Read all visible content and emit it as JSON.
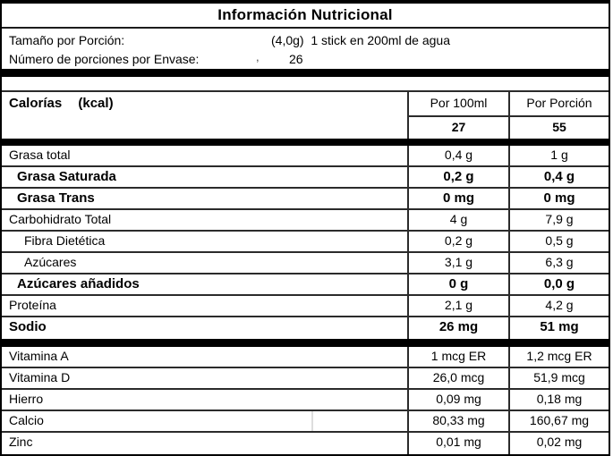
{
  "colors": {
    "text": "#000000",
    "border_heavy": "#000000",
    "border_light": "#2b2b2b",
    "artifact_line": "#dddddd",
    "background": "#ffffff"
  },
  "title": "Información Nutricional",
  "serving": {
    "size_label": "Tamaño por Porción:",
    "size_value": "(4,0g)  1 stick en 200ml de agua",
    "count_label": "Número de porciones por Envase:",
    "stray_mark": ",",
    "count_value": "26"
  },
  "header": {
    "calories_label": "Calorías",
    "calories_unit": "(kcal)",
    "col_per_100ml": "Por 100ml",
    "col_per_portion": "Por Porción",
    "calories_per_100ml": "27",
    "calories_per_portion": "55"
  },
  "rows": [
    {
      "label": "Grasa total",
      "per100ml": "0,4 g",
      "portion": "1 g"
    },
    {
      "label": "Grasa Saturada",
      "per100ml": "0,2 g",
      "portion": "0,4 g"
    },
    {
      "label": "Grasa Trans",
      "per100ml": "0 mg",
      "portion": "0 mg"
    },
    {
      "label": "Carbohidrato Total",
      "per100ml": "4 g",
      "portion": "7,9 g"
    },
    {
      "label": "Fibra Dietética",
      "per100ml": "0,2 g",
      "portion": "0,5 g"
    },
    {
      "label": "Azúcares",
      "per100ml": "3,1 g",
      "portion": "6,3 g"
    },
    {
      "label": "Azúcares añadidos",
      "per100ml": "0 g",
      "portion": "0,0 g"
    },
    {
      "label": "Proteína",
      "per100ml": "2,1 g",
      "portion": "4,2 g"
    },
    {
      "label": "Sodio",
      "per100ml": "26 mg",
      "portion": "51 mg"
    }
  ],
  "vitamin_rows": [
    {
      "label": "Vitamina A",
      "per100ml": "1 mcg ER",
      "portion": "1,2 mcg ER"
    },
    {
      "label": "Vitamina D",
      "per100ml": "26,0 mcg",
      "portion": "51,9 mcg"
    },
    {
      "label": "Hierro",
      "per100ml": "0,09 mg",
      "portion": "0,18 mg"
    },
    {
      "label": "Calcio",
      "per100ml": "80,33 mg",
      "portion": "160,67 mg"
    },
    {
      "label": "Zinc",
      "per100ml": "0,01 mg",
      "portion": "0,02 mg"
    }
  ]
}
